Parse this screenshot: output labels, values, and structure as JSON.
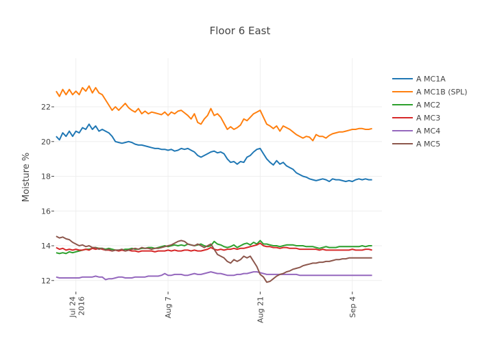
{
  "chart_data": {
    "type": "line",
    "title": "Floor 6 East",
    "xlabel": "",
    "ylabel": "Moisture %",
    "x_unit": "days since Jul 21 2016",
    "xlim": [
      -0.2,
      49.5
    ],
    "ylim": [
      11.4,
      24.8
    ],
    "grid": true,
    "legend_position": "top-right",
    "x_ticks": [
      {
        "value": 3,
        "label": "Jul 24",
        "sublabel": "2016"
      },
      {
        "value": 17,
        "label": "Aug 7",
        "sublabel": ""
      },
      {
        "value": 31,
        "label": "Aug 21",
        "sublabel": ""
      },
      {
        "value": 45,
        "label": "Sep 4",
        "sublabel": ""
      }
    ],
    "y_ticks": [
      12,
      14,
      16,
      18,
      20,
      22
    ],
    "x": [
      0,
      0.5,
      1,
      1.5,
      2,
      2.5,
      3,
      3.5,
      4,
      4.5,
      5,
      5.5,
      6,
      6.5,
      7,
      7.5,
      8,
      8.5,
      9,
      9.5,
      10,
      10.5,
      11,
      11.5,
      12,
      12.5,
      13,
      13.5,
      14,
      14.5,
      15,
      15.5,
      16,
      16.5,
      17,
      17.5,
      18,
      18.5,
      19,
      19.5,
      20,
      20.5,
      21,
      21.5,
      22,
      22.5,
      23,
      23.5,
      24,
      24.5,
      25,
      25.5,
      26,
      26.5,
      27,
      27.5,
      28,
      28.5,
      29,
      29.5,
      30,
      30.5,
      31,
      31.5,
      32,
      32.5,
      33,
      33.5,
      34,
      34.5,
      35,
      35.5,
      36,
      36.5,
      37,
      37.5,
      38,
      38.5,
      39,
      39.5,
      40,
      40.5,
      41,
      41.5,
      42,
      42.5,
      43,
      43.5,
      44,
      44.5,
      45,
      45.5,
      46,
      46.5,
      47,
      47.5,
      48
    ],
    "series": [
      {
        "name": "A MC1A",
        "color": "#1f77b4",
        "values": [
          20.3,
          20.1,
          20.5,
          20.3,
          20.6,
          20.3,
          20.6,
          20.5,
          20.8,
          20.7,
          21.0,
          20.7,
          20.9,
          20.6,
          20.7,
          20.6,
          20.5,
          20.3,
          20.0,
          19.95,
          19.9,
          19.95,
          20.0,
          19.95,
          19.85,
          19.8,
          19.8,
          19.75,
          19.7,
          19.65,
          19.6,
          19.6,
          19.55,
          19.55,
          19.5,
          19.55,
          19.45,
          19.5,
          19.6,
          19.55,
          19.6,
          19.5,
          19.4,
          19.2,
          19.1,
          19.2,
          19.3,
          19.4,
          19.45,
          19.35,
          19.4,
          19.3,
          19.0,
          18.8,
          18.85,
          18.7,
          18.85,
          18.8,
          19.1,
          19.2,
          19.4,
          19.55,
          19.6,
          19.3,
          19.0,
          18.8,
          18.65,
          18.9,
          18.7,
          18.8,
          18.6,
          18.5,
          18.4,
          18.2,
          18.1,
          18.0,
          17.95,
          17.85,
          17.8,
          17.75,
          17.8,
          17.85,
          17.8,
          17.7,
          17.85,
          17.8,
          17.8,
          17.75,
          17.7,
          17.75,
          17.7,
          17.8,
          17.85,
          17.8,
          17.85,
          17.8,
          17.8
        ]
      },
      {
        "name": "A MC1B (SPL)",
        "color": "#ff7f0e",
        "values": [
          22.9,
          22.6,
          23.0,
          22.7,
          23.0,
          22.7,
          22.9,
          22.7,
          23.1,
          22.9,
          23.2,
          22.8,
          23.1,
          22.8,
          22.7,
          22.4,
          22.1,
          21.8,
          22.0,
          21.8,
          22.0,
          22.2,
          21.95,
          21.8,
          21.7,
          21.9,
          21.6,
          21.75,
          21.6,
          21.7,
          21.65,
          21.6,
          21.55,
          21.7,
          21.5,
          21.7,
          21.6,
          21.75,
          21.8,
          21.65,
          21.5,
          21.3,
          21.6,
          21.1,
          21.0,
          21.3,
          21.5,
          21.9,
          21.5,
          21.6,
          21.4,
          21.05,
          20.7,
          20.85,
          20.7,
          20.8,
          20.95,
          21.3,
          21.2,
          21.4,
          21.6,
          21.7,
          21.8,
          21.4,
          21.0,
          20.9,
          20.75,
          20.9,
          20.6,
          20.9,
          20.8,
          20.7,
          20.55,
          20.4,
          20.3,
          20.2,
          20.3,
          20.25,
          20.05,
          20.4,
          20.3,
          20.3,
          20.2,
          20.35,
          20.45,
          20.5,
          20.55,
          20.55,
          20.6,
          20.65,
          20.7,
          20.7,
          20.75,
          20.75,
          20.7,
          20.7,
          20.75
        ]
      },
      {
        "name": "A MC2",
        "color": "#2ca02c",
        "values": [
          13.6,
          13.55,
          13.6,
          13.55,
          13.65,
          13.6,
          13.65,
          13.7,
          13.75,
          13.8,
          13.8,
          13.85,
          13.9,
          13.85,
          13.85,
          13.8,
          13.85,
          13.8,
          13.75,
          13.75,
          13.75,
          13.8,
          13.8,
          13.85,
          13.8,
          13.8,
          13.85,
          13.85,
          13.9,
          13.9,
          13.85,
          13.9,
          13.95,
          14.0,
          13.95,
          14.0,
          14.05,
          14.0,
          14.05,
          14.0,
          14.1,
          14.05,
          14.0,
          14.05,
          14.1,
          14.0,
          13.95,
          14.0,
          14.25,
          14.1,
          14.05,
          13.95,
          13.9,
          13.95,
          14.05,
          13.9,
          14.0,
          14.1,
          14.15,
          14.05,
          14.2,
          14.1,
          14.3,
          14.1,
          14.1,
          14.05,
          14.0,
          14.0,
          13.95,
          14.0,
          14.05,
          14.05,
          14.05,
          14.0,
          14.0,
          14.0,
          13.95,
          13.95,
          13.95,
          13.9,
          13.85,
          13.9,
          13.95,
          13.9,
          13.9,
          13.9,
          13.95,
          13.95,
          13.95,
          13.95,
          13.95,
          13.95,
          13.95,
          14.0,
          13.95,
          14.0,
          14.0
        ]
      },
      {
        "name": "A MC3",
        "color": "#d62728",
        "values": [
          13.9,
          13.8,
          13.85,
          13.75,
          13.8,
          13.75,
          13.8,
          13.75,
          13.75,
          13.8,
          13.75,
          13.85,
          13.8,
          13.85,
          13.8,
          13.75,
          13.75,
          13.7,
          13.75,
          13.7,
          13.75,
          13.7,
          13.75,
          13.7,
          13.7,
          13.65,
          13.7,
          13.7,
          13.7,
          13.7,
          13.65,
          13.7,
          13.7,
          13.7,
          13.75,
          13.7,
          13.75,
          13.7,
          13.7,
          13.75,
          13.75,
          13.7,
          13.75,
          13.7,
          13.7,
          13.75,
          13.8,
          13.9,
          13.8,
          13.75,
          13.8,
          13.75,
          13.8,
          13.8,
          13.85,
          13.8,
          13.85,
          13.85,
          13.9,
          13.95,
          14.0,
          14.05,
          14.15,
          14.0,
          13.95,
          13.95,
          13.9,
          13.9,
          13.85,
          13.9,
          13.9,
          13.85,
          13.85,
          13.85,
          13.8,
          13.8,
          13.8,
          13.8,
          13.8,
          13.8,
          13.75,
          13.8,
          13.75,
          13.75,
          13.75,
          13.75,
          13.75,
          13.75,
          13.75,
          13.75,
          13.8,
          13.75,
          13.75,
          13.75,
          13.8,
          13.8,
          13.75
        ]
      },
      {
        "name": "A MC4",
        "color": "#9467bd",
        "values": [
          12.2,
          12.15,
          12.15,
          12.15,
          12.15,
          12.15,
          12.15,
          12.15,
          12.2,
          12.2,
          12.2,
          12.2,
          12.25,
          12.2,
          12.2,
          12.05,
          12.1,
          12.1,
          12.15,
          12.2,
          12.2,
          12.15,
          12.15,
          12.15,
          12.2,
          12.2,
          12.2,
          12.2,
          12.25,
          12.25,
          12.25,
          12.25,
          12.3,
          12.4,
          12.3,
          12.3,
          12.35,
          12.35,
          12.35,
          12.3,
          12.3,
          12.35,
          12.4,
          12.35,
          12.35,
          12.4,
          12.45,
          12.5,
          12.45,
          12.4,
          12.4,
          12.35,
          12.3,
          12.3,
          12.3,
          12.35,
          12.35,
          12.4,
          12.4,
          12.45,
          12.5,
          12.5,
          12.45,
          12.4,
          12.35,
          12.35,
          12.35,
          12.35,
          12.35,
          12.35,
          12.35,
          12.35,
          12.35,
          12.35,
          12.3,
          12.3,
          12.3,
          12.3,
          12.3,
          12.3,
          12.3,
          12.3,
          12.3,
          12.3,
          12.3,
          12.3,
          12.3,
          12.3,
          12.3,
          12.3,
          12.3,
          12.3,
          12.3,
          12.3,
          12.3,
          12.3,
          12.3
        ]
      },
      {
        "name": "A MC5",
        "color": "#8c564b",
        "values": [
          14.55,
          14.45,
          14.5,
          14.4,
          14.35,
          14.2,
          14.1,
          14.0,
          14.05,
          13.95,
          14.0,
          13.9,
          13.9,
          13.8,
          13.85,
          13.75,
          13.8,
          13.7,
          13.75,
          13.75,
          13.8,
          13.7,
          13.75,
          13.8,
          13.85,
          13.8,
          13.9,
          13.85,
          13.85,
          13.8,
          13.85,
          13.85,
          13.9,
          13.95,
          14.0,
          14.05,
          14.15,
          14.25,
          14.3,
          14.25,
          14.1,
          14.05,
          14.0,
          14.1,
          14.0,
          13.9,
          14.0,
          14.1,
          13.8,
          13.5,
          13.4,
          13.3,
          13.1,
          13.0,
          13.2,
          13.1,
          13.2,
          13.4,
          13.3,
          13.4,
          13.1,
          12.8,
          12.35,
          12.2,
          11.9,
          11.95,
          12.1,
          12.25,
          12.35,
          12.4,
          12.5,
          12.55,
          12.65,
          12.7,
          12.75,
          12.85,
          12.9,
          12.95,
          13.0,
          13.0,
          13.05,
          13.05,
          13.1,
          13.1,
          13.15,
          13.2,
          13.2,
          13.25,
          13.25,
          13.3,
          13.3,
          13.3,
          13.3,
          13.3,
          13.3,
          13.3,
          13.3
        ]
      }
    ]
  }
}
